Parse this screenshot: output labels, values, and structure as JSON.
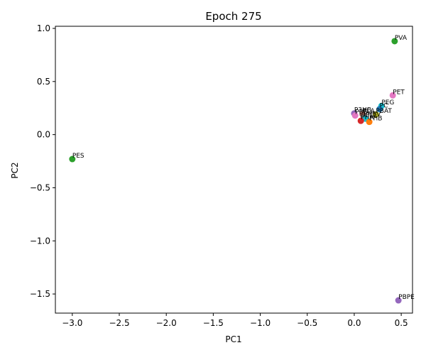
{
  "chart_data": {
    "type": "scatter",
    "title": "Epoch 275",
    "xlabel": "PC1",
    "ylabel": "PC2",
    "xlim": [
      -3.18,
      0.62
    ],
    "ylim": [
      -1.68,
      1.02
    ],
    "xticks": [
      -3.0,
      -2.5,
      -2.0,
      -1.5,
      -1.0,
      -0.5,
      0.0,
      0.5
    ],
    "xtick_labels": [
      "−3.0",
      "−2.5",
      "−2.0",
      "−1.5",
      "−1.0",
      "−0.5",
      "0.0",
      "0.5"
    ],
    "yticks": [
      -1.5,
      -1.0,
      -0.5,
      0.0,
      0.5,
      1.0
    ],
    "ytick_labels": [
      "−1.5",
      "−1.0",
      "−0.5",
      "0.0",
      "0.5",
      "1.0"
    ],
    "grid": false,
    "points": [
      {
        "label": "PVA",
        "x": 0.43,
        "y": 0.88,
        "color": "#2ca02c"
      },
      {
        "label": "PET",
        "x": 0.41,
        "y": 0.37,
        "color": "#e377c2"
      },
      {
        "label": "PEG",
        "x": 0.29,
        "y": 0.27,
        "color": "#17becf"
      },
      {
        "label": "PC",
        "x": 0.27,
        "y": 0.24,
        "color": "#1f77b4"
      },
      {
        "label": "P3HB",
        "x": 0.0,
        "y": 0.2,
        "color": "#9467bd"
      },
      {
        "label": "PBS",
        "x": 0.01,
        "y": 0.18,
        "color": "#e377c2"
      },
      {
        "label": "PLA",
        "x": 0.09,
        "y": 0.19,
        "color": "#8c564b"
      },
      {
        "label": "PBAT",
        "x": 0.23,
        "y": 0.19,
        "color": "#bcbd22"
      },
      {
        "label": "PHBV",
        "x": 0.1,
        "y": 0.16,
        "color": "#7f7f7f"
      },
      {
        "label": "PCL",
        "x": 0.12,
        "y": 0.15,
        "color": "#17becf"
      },
      {
        "label": "PHB",
        "x": 0.16,
        "y": 0.12,
        "color": "#ff7f0e"
      },
      {
        "label": "PHA",
        "x": 0.07,
        "y": 0.13,
        "color": "#d62728"
      },
      {
        "label": "PES",
        "x": -3.0,
        "y": -0.23,
        "color": "#2ca02c"
      },
      {
        "label": "PBPE",
        "x": 0.47,
        "y": -1.56,
        "color": "#9467bd"
      }
    ]
  }
}
